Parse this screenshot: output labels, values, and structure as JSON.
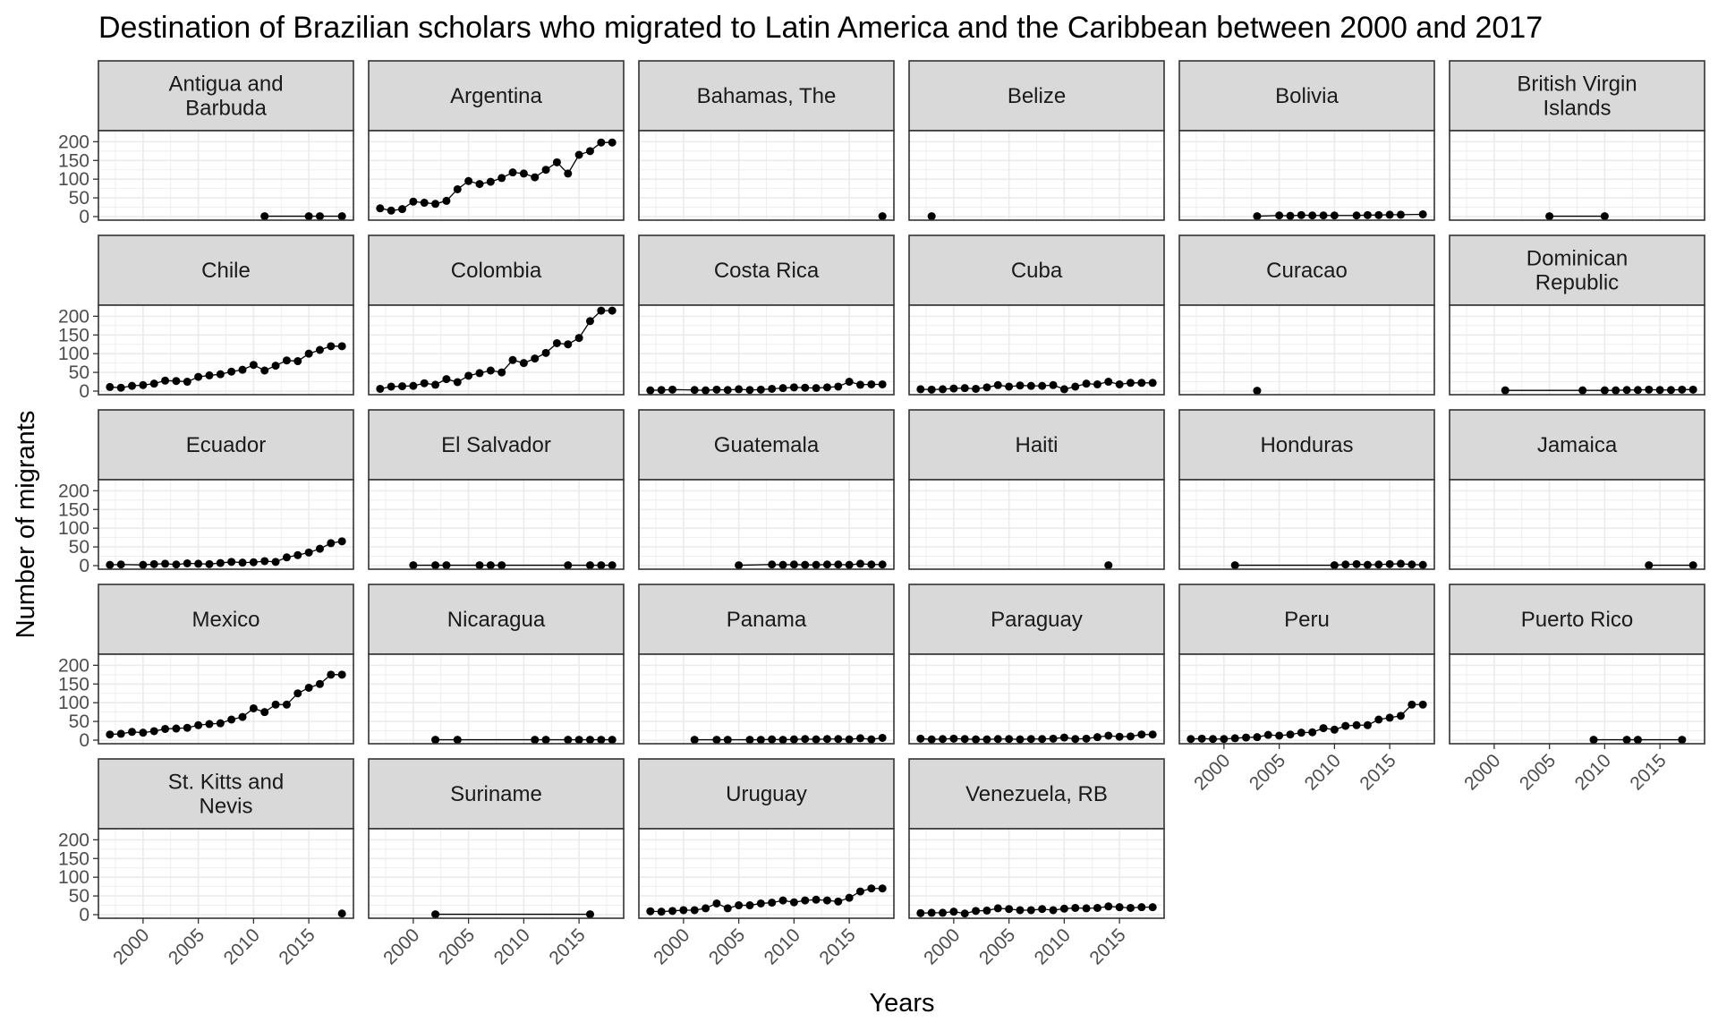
{
  "chart_data": {
    "type": "line",
    "title": "Destination of Brazilian scholars who migrated to Latin America and the Caribbean between 2000 and 2017",
    "xlabel": "Years",
    "ylabel": "Number of migrants",
    "xlim": [
      1997,
      2018
    ],
    "ylim": [
      0,
      220
    ],
    "xticks": [
      2000,
      2005,
      2010,
      2015
    ],
    "yticks": [
      0,
      50,
      100,
      150,
      200
    ],
    "grid": true,
    "facet_columns": 6,
    "colors": {
      "panel_border": "#333333",
      "strip_fill": "#d9d9d9",
      "grid": "#ebebeb",
      "line": "#000000"
    },
    "panels": [
      {
        "name": "Antigua and\nBarbuda",
        "x": [
          2011,
          2015,
          2016,
          2018
        ],
        "y": [
          1,
          1,
          1,
          1
        ]
      },
      {
        "name": "Argentina",
        "x": [
          1997,
          1998,
          1999,
          2000,
          2001,
          2002,
          2003,
          2004,
          2005,
          2006,
          2007,
          2008,
          2009,
          2010,
          2011,
          2012,
          2013,
          2014,
          2015,
          2016,
          2017,
          2018
        ],
        "y": [
          22,
          16,
          20,
          40,
          37,
          34,
          42,
          73,
          95,
          87,
          93,
          103,
          118,
          115,
          105,
          125,
          145,
          115,
          165,
          175,
          198,
          198
        ]
      },
      {
        "name": "Bahamas, The",
        "x": [
          2018
        ],
        "y": [
          1
        ]
      },
      {
        "name": "Belize",
        "x": [
          1998
        ],
        "y": [
          1
        ]
      },
      {
        "name": "Bolivia",
        "x": [
          2003,
          2005,
          2006,
          2007,
          2008,
          2009,
          2010,
          2012,
          2013,
          2014,
          2015,
          2016,
          2018
        ],
        "y": [
          1,
          3,
          2,
          4,
          3,
          3,
          3,
          3,
          4,
          4,
          5,
          5,
          6
        ]
      },
      {
        "name": "British Virgin\nIslands",
        "x": [
          2005,
          2010
        ],
        "y": [
          1,
          1
        ]
      },
      {
        "name": "Chile",
        "x": [
          1997,
          1998,
          1999,
          2000,
          2001,
          2002,
          2003,
          2004,
          2005,
          2006,
          2007,
          2008,
          2009,
          2010,
          2011,
          2012,
          2013,
          2014,
          2015,
          2016,
          2017,
          2018
        ],
        "y": [
          11,
          9,
          14,
          16,
          20,
          28,
          27,
          25,
          38,
          42,
          45,
          52,
          57,
          70,
          55,
          68,
          82,
          80,
          100,
          110,
          120,
          120
        ]
      },
      {
        "name": "Colombia",
        "x": [
          1997,
          1998,
          1999,
          2000,
          2001,
          2002,
          2003,
          2004,
          2005,
          2006,
          2007,
          2008,
          2009,
          2010,
          2011,
          2012,
          2013,
          2014,
          2015,
          2016,
          2017,
          2018
        ],
        "y": [
          6,
          12,
          13,
          14,
          21,
          17,
          32,
          24,
          41,
          48,
          55,
          50,
          83,
          75,
          87,
          102,
          128,
          125,
          142,
          187,
          215,
          215
        ]
      },
      {
        "name": "Costa Rica",
        "x": [
          1997,
          1998,
          1999,
          2001,
          2002,
          2003,
          2004,
          2005,
          2006,
          2007,
          2008,
          2009,
          2010,
          2011,
          2012,
          2013,
          2014,
          2015,
          2016,
          2017,
          2018
        ],
        "y": [
          2,
          3,
          4,
          3,
          2,
          4,
          3,
          5,
          3,
          4,
          6,
          8,
          10,
          9,
          8,
          10,
          12,
          25,
          17,
          18,
          18
        ]
      },
      {
        "name": "Cuba",
        "x": [
          1997,
          1998,
          1999,
          2000,
          2001,
          2002,
          2003,
          2004,
          2005,
          2006,
          2007,
          2008,
          2009,
          2010,
          2011,
          2012,
          2013,
          2014,
          2015,
          2016,
          2017,
          2018
        ],
        "y": [
          5,
          4,
          5,
          7,
          8,
          6,
          10,
          16,
          12,
          15,
          14,
          14,
          16,
          5,
          12,
          20,
          18,
          25,
          18,
          22,
          22,
          22
        ]
      },
      {
        "name": "Curacao",
        "x": [
          2003
        ],
        "y": [
          1
        ]
      },
      {
        "name": "Dominican\nRepublic",
        "x": [
          2001,
          2008,
          2010,
          2011,
          2012,
          2013,
          2014,
          2015,
          2016,
          2017,
          2018
        ],
        "y": [
          2,
          2,
          2,
          2,
          3,
          3,
          4,
          3,
          3,
          4,
          4
        ]
      },
      {
        "name": "Ecuador",
        "x": [
          1997,
          1998,
          2000,
          2001,
          2002,
          2003,
          2004,
          2005,
          2006,
          2007,
          2008,
          2009,
          2010,
          2011,
          2012,
          2013,
          2014,
          2015,
          2016,
          2017,
          2018
        ],
        "y": [
          2,
          3,
          2,
          4,
          5,
          3,
          6,
          5,
          4,
          7,
          10,
          8,
          9,
          12,
          10,
          22,
          28,
          35,
          45,
          60,
          65
        ]
      },
      {
        "name": "El Salvador",
        "x": [
          2000,
          2002,
          2003,
          2006,
          2007,
          2008,
          2014,
          2016,
          2017,
          2018
        ],
        "y": [
          1,
          1,
          1,
          1,
          1,
          1,
          1,
          1,
          1,
          1
        ]
      },
      {
        "name": "Guatemala",
        "x": [
          2005,
          2008,
          2009,
          2010,
          2011,
          2012,
          2013,
          2014,
          2015,
          2016,
          2017,
          2018
        ],
        "y": [
          1,
          3,
          2,
          3,
          2,
          2,
          3,
          3,
          2,
          5,
          3,
          3
        ]
      },
      {
        "name": "Haiti",
        "x": [
          2014
        ],
        "y": [
          1
        ]
      },
      {
        "name": "Honduras",
        "x": [
          2001,
          2010,
          2011,
          2012,
          2013,
          2014,
          2015,
          2016,
          2017,
          2018
        ],
        "y": [
          1,
          1,
          3,
          4,
          2,
          3,
          4,
          5,
          3,
          2
        ]
      },
      {
        "name": "Jamaica",
        "x": [
          2014,
          2018
        ],
        "y": [
          1,
          1
        ]
      },
      {
        "name": "Mexico",
        "x": [
          1997,
          1998,
          1999,
          2000,
          2001,
          2002,
          2003,
          2004,
          2005,
          2006,
          2007,
          2008,
          2009,
          2010,
          2011,
          2012,
          2013,
          2014,
          2015,
          2016,
          2017,
          2018
        ],
        "y": [
          15,
          17,
          22,
          20,
          24,
          30,
          31,
          33,
          40,
          43,
          45,
          55,
          62,
          85,
          75,
          95,
          95,
          125,
          140,
          150,
          175,
          175
        ]
      },
      {
        "name": "Nicaragua",
        "x": [
          2002,
          2004,
          2011,
          2012,
          2014,
          2015,
          2016,
          2017,
          2018
        ],
        "y": [
          1,
          1,
          1,
          1,
          1,
          1,
          1,
          1,
          1
        ]
      },
      {
        "name": "Panama",
        "x": [
          2001,
          2003,
          2004,
          2006,
          2007,
          2008,
          2009,
          2010,
          2011,
          2012,
          2013,
          2014,
          2015,
          2016,
          2017,
          2018
        ],
        "y": [
          1,
          1,
          1,
          1,
          1,
          2,
          1,
          2,
          3,
          2,
          3,
          3,
          2,
          5,
          2,
          6
        ]
      },
      {
        "name": "Paraguay",
        "x": [
          1997,
          1998,
          1999,
          2000,
          2001,
          2002,
          2003,
          2004,
          2005,
          2006,
          2007,
          2008,
          2009,
          2010,
          2011,
          2012,
          2013,
          2014,
          2015,
          2016,
          2017,
          2018
        ],
        "y": [
          4,
          2,
          3,
          4,
          3,
          2,
          2,
          3,
          3,
          2,
          3,
          3,
          4,
          7,
          3,
          4,
          8,
          12,
          9,
          10,
          15,
          15
        ]
      },
      {
        "name": "Peru",
        "x": [
          1997,
          1998,
          1999,
          2000,
          2001,
          2002,
          2003,
          2004,
          2005,
          2006,
          2007,
          2008,
          2009,
          2010,
          2011,
          2012,
          2013,
          2014,
          2015,
          2016,
          2017,
          2018
        ],
        "y": [
          3,
          4,
          3,
          3,
          5,
          7,
          8,
          14,
          12,
          15,
          20,
          21,
          32,
          28,
          38,
          40,
          40,
          55,
          60,
          65,
          95,
          95
        ]
      },
      {
        "name": "Puerto Rico",
        "x": [
          2009,
          2012,
          2013,
          2017
        ],
        "y": [
          1,
          1,
          1,
          1
        ]
      },
      {
        "name": "St. Kitts and\nNevis",
        "x": [
          2018
        ],
        "y": [
          3
        ]
      },
      {
        "name": "Suriname",
        "x": [
          2002,
          2016
        ],
        "y": [
          1,
          1
        ]
      },
      {
        "name": "Uruguay",
        "x": [
          1997,
          1998,
          1999,
          2000,
          2001,
          2002,
          2003,
          2004,
          2005,
          2006,
          2007,
          2008,
          2009,
          2010,
          2011,
          2012,
          2013,
          2014,
          2015,
          2016,
          2017,
          2018
        ],
        "y": [
          9,
          8,
          10,
          12,
          12,
          17,
          30,
          17,
          25,
          25,
          30,
          32,
          38,
          33,
          38,
          40,
          38,
          35,
          45,
          62,
          70,
          70
        ]
      },
      {
        "name": "Venezuela, RB",
        "x": [
          1997,
          1998,
          1999,
          2000,
          2001,
          2002,
          2003,
          2004,
          2005,
          2006,
          2007,
          2008,
          2009,
          2010,
          2011,
          2012,
          2013,
          2014,
          2015,
          2016,
          2017,
          2018
        ],
        "y": [
          4,
          5,
          5,
          8,
          3,
          10,
          11,
          17,
          15,
          12,
          12,
          15,
          12,
          16,
          18,
          17,
          18,
          22,
          20,
          18,
          20,
          20
        ]
      }
    ]
  }
}
